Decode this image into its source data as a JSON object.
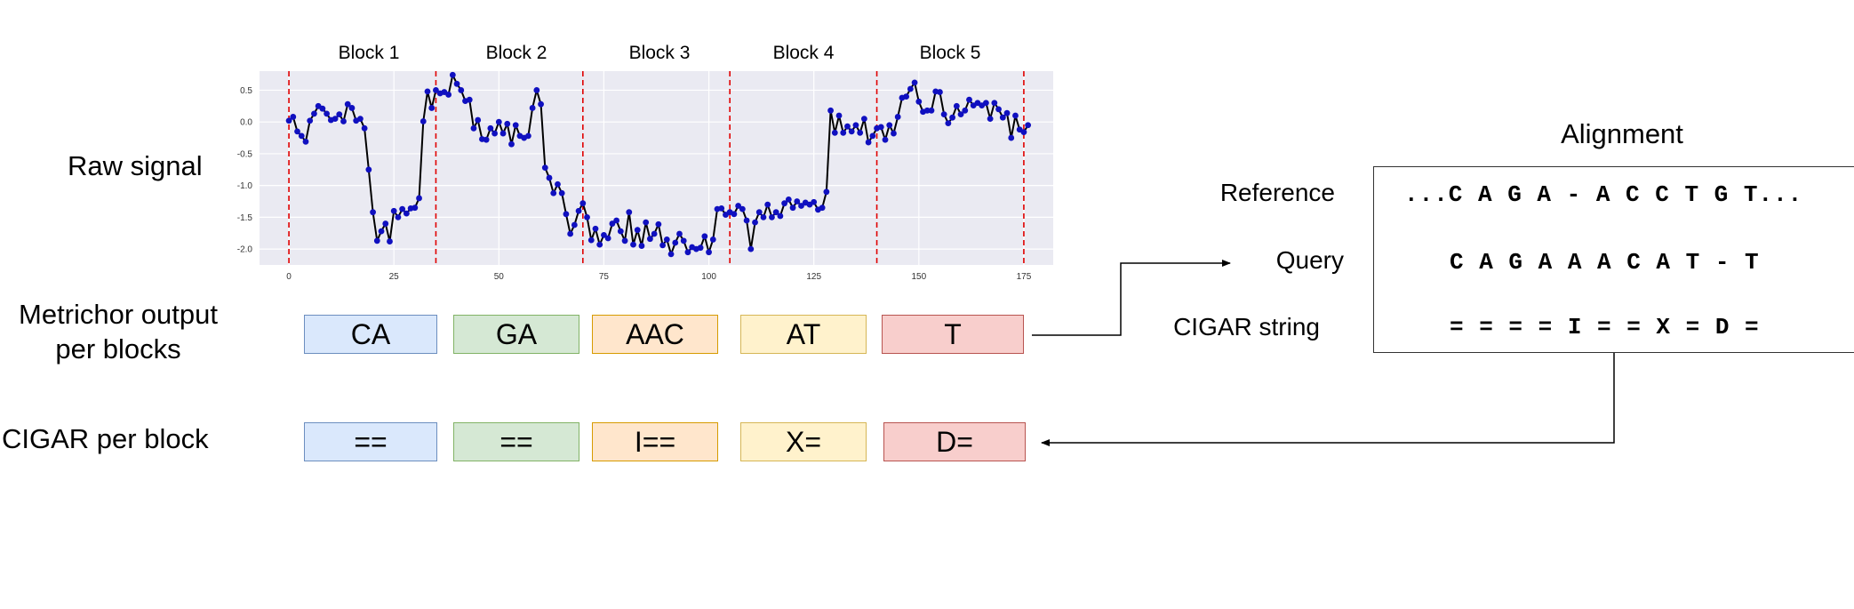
{
  "labels": {
    "raw_signal": "Raw signal",
    "metrichor_line1": "Metrichor output",
    "metrichor_line2": "per blocks",
    "cigar_per_block": "CIGAR per block"
  },
  "blocks": [
    {
      "title": "Block 1",
      "output": "CA",
      "cigar": "=="
    },
    {
      "title": "Block 2",
      "output": "GA",
      "cigar": "=="
    },
    {
      "title": "Block 3",
      "output": "AAC",
      "cigar": "I=="
    },
    {
      "title": "Block 4",
      "output": "AT",
      "cigar": "X="
    },
    {
      "title": "Block 5",
      "output": "T",
      "cigar": "D="
    }
  ],
  "alignment": {
    "title": "Alignment",
    "reference_label": "Reference",
    "reference_seq": "...C A G A - A C C T G T...",
    "query_label": "Query",
    "query_seq": "C A G A A A C A T - T",
    "cigar_label": "CIGAR string",
    "cigar_seq": "= = = = I = = X = D ="
  },
  "chart_data": {
    "type": "line",
    "title": "",
    "xlabel": "",
    "ylabel": "",
    "xlim": [
      -7,
      182
    ],
    "ylim": [
      -2.25,
      0.8
    ],
    "x_ticks": [
      0,
      25,
      50,
      75,
      100,
      125,
      150,
      175
    ],
    "y_ticks": [
      0.5,
      0.0,
      -0.5,
      -1.0,
      -1.5,
      -2.0
    ],
    "y_tick_labels": [
      "0.5",
      "0.0",
      "-0.5",
      "-1.0",
      "-1.5",
      "-2.0"
    ],
    "grid": true,
    "block_boundaries": [
      0,
      35,
      70,
      105,
      140,
      175
    ],
    "colors": {
      "line": "#000000",
      "marker": "#1010c0",
      "boundary": "#e00000",
      "background": "#eaeaf2"
    },
    "y": [
      0.02,
      0.08,
      -0.15,
      -0.22,
      -0.31,
      0.02,
      0.13,
      0.25,
      0.21,
      0.13,
      0.03,
      0.05,
      0.12,
      0.01,
      0.28,
      0.22,
      0.02,
      0.05,
      -0.1,
      -0.75,
      -1.42,
      -1.87,
      -1.72,
      -1.6,
      -1.88,
      -1.4,
      -1.5,
      -1.37,
      -1.44,
      -1.36,
      -1.35,
      -1.2,
      0.01,
      0.48,
      0.22,
      0.5,
      0.45,
      0.47,
      0.43,
      0.74,
      0.6,
      0.5,
      0.33,
      0.35,
      -0.1,
      0.03,
      -0.27,
      -0.28,
      -0.1,
      -0.18,
      0.0,
      -0.18,
      -0.03,
      -0.35,
      -0.05,
      -0.22,
      -0.25,
      -0.22,
      0.22,
      0.5,
      0.28,
      -0.72,
      -0.88,
      -1.12,
      -0.98,
      -1.12,
      -1.45,
      -1.76,
      -1.62,
      -1.4,
      -1.28,
      -1.5,
      -1.86,
      -1.68,
      -1.93,
      -1.78,
      -1.83,
      -1.6,
      -1.55,
      -1.72,
      -1.87,
      -1.42,
      -1.93,
      -1.7,
      -1.95,
      -1.58,
      -1.84,
      -1.76,
      -1.61,
      -1.94,
      -1.85,
      -2.08,
      -1.9,
      -1.76,
      -1.87,
      -2.05,
      -1.97,
      -2.0,
      -1.98,
      -1.8,
      -2.05,
      -1.85,
      -1.37,
      -1.36,
      -1.46,
      -1.42,
      -1.45,
      -1.32,
      -1.37,
      -1.55,
      -2.0,
      -1.58,
      -1.42,
      -1.5,
      -1.3,
      -1.5,
      -1.42,
      -1.48,
      -1.28,
      -1.22,
      -1.35,
      -1.25,
      -1.32,
      -1.27,
      -1.3,
      -1.26,
      -1.38,
      -1.35,
      -1.1,
      0.18,
      -0.17,
      0.1,
      -0.17,
      -0.07,
      -0.15,
      -0.05,
      -0.17,
      0.05,
      -0.32,
      -0.22,
      -0.1,
      -0.08,
      -0.28,
      -0.05,
      -0.18,
      0.08,
      0.38,
      0.4,
      0.52,
      0.62,
      0.32,
      0.16,
      0.18,
      0.18,
      0.48,
      0.47,
      0.12,
      -0.02,
      0.07,
      0.25,
      0.12,
      0.18,
      0.35,
      0.26,
      0.3,
      0.26,
      0.3,
      0.05,
      0.3,
      0.2,
      0.07,
      0.14,
      -0.25,
      0.1,
      -0.12,
      -0.16,
      -0.05
    ]
  }
}
